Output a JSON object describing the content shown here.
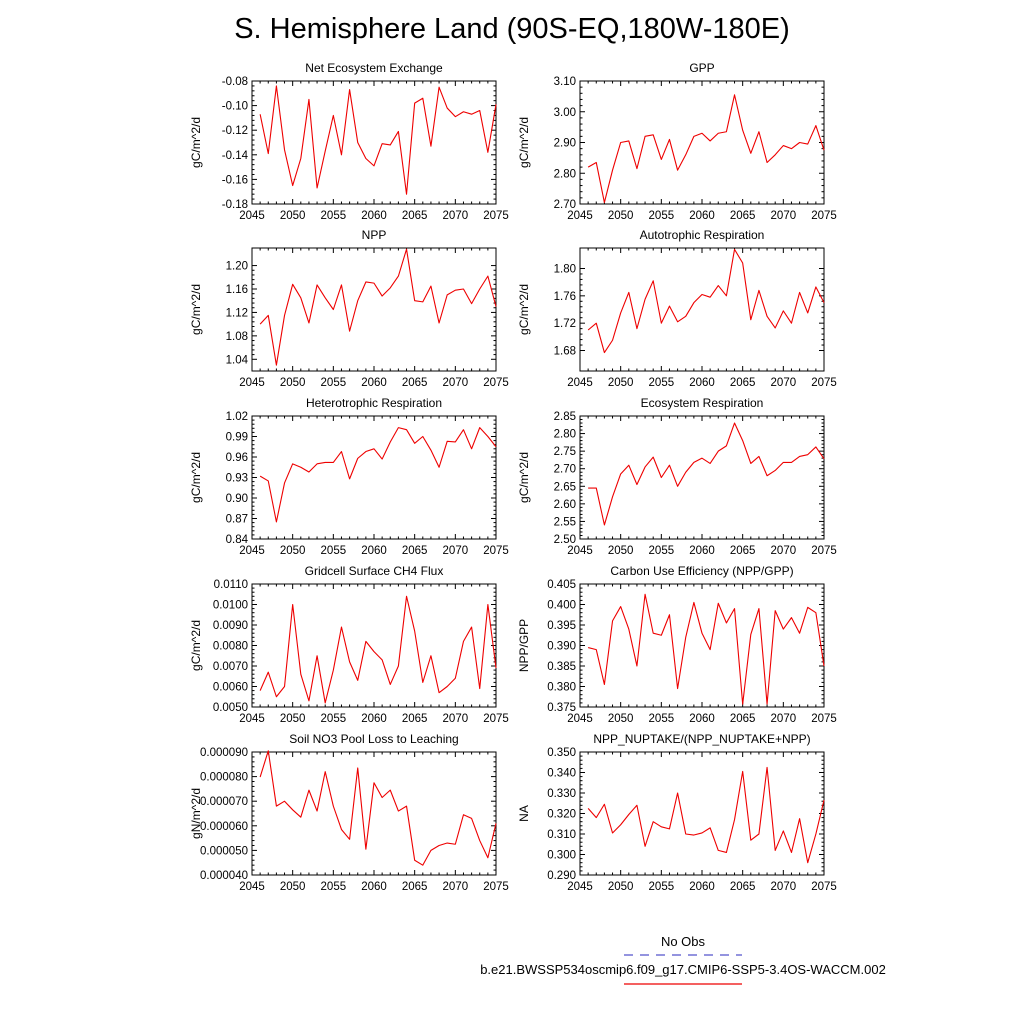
{
  "page_title": "S. Hemisphere Land (90S-EQ,180W-180E)",
  "line_color": "#ee0000",
  "obs_color": "#5555cc",
  "legend": {
    "obs_label": "No Obs",
    "model_label": "b.e21.BWSSP534oscmip6.f09_g17.CMIP6-SSP5-3.4OS-WACCM.002"
  },
  "chart_data": [
    {
      "type": "line",
      "title": "Net Ecosystem Exchange",
      "ylabel": "gC/m^2/d",
      "xlim": [
        2045,
        2075
      ],
      "ylim": [
        -0.18,
        -0.08
      ],
      "xticks": [
        2045,
        2050,
        2055,
        2060,
        2065,
        2070,
        2075
      ],
      "yticks": [
        -0.18,
        -0.16,
        -0.14,
        -0.12,
        -0.1,
        -0.08
      ],
      "ytick_labels": [
        "-0.18",
        "-0.16",
        "-0.14",
        "-0.12",
        "-0.10",
        "-0.08"
      ],
      "x": [
        2046,
        2047,
        2048,
        2049,
        2050,
        2051,
        2052,
        2053,
        2054,
        2055,
        2056,
        2057,
        2058,
        2059,
        2060,
        2061,
        2062,
        2063,
        2064,
        2065,
        2066,
        2067,
        2068,
        2069,
        2070,
        2071,
        2072,
        2073,
        2074,
        2075
      ],
      "values": [
        -0.107,
        -0.139,
        -0.084,
        -0.136,
        -0.165,
        -0.143,
        -0.095,
        -0.167,
        -0.137,
        -0.108,
        -0.14,
        -0.087,
        -0.13,
        -0.143,
        -0.149,
        -0.131,
        -0.132,
        -0.121,
        -0.172,
        -0.098,
        -0.094,
        -0.133,
        -0.085,
        -0.102,
        -0.109,
        -0.105,
        -0.107,
        -0.104,
        -0.138,
        -0.099
      ]
    },
    {
      "type": "line",
      "title": "GPP",
      "ylabel": "gC/m^2/d",
      "xlim": [
        2045,
        2075
      ],
      "ylim": [
        2.7,
        3.1
      ],
      "xticks": [
        2045,
        2050,
        2055,
        2060,
        2065,
        2070,
        2075
      ],
      "yticks": [
        2.7,
        2.8,
        2.9,
        3.0,
        3.1
      ],
      "ytick_labels": [
        "2.70",
        "2.80",
        "2.90",
        "3.00",
        "3.10"
      ],
      "x": [
        2046,
        2047,
        2048,
        2049,
        2050,
        2051,
        2052,
        2053,
        2054,
        2055,
        2056,
        2057,
        2058,
        2059,
        2060,
        2061,
        2062,
        2063,
        2064,
        2065,
        2066,
        2067,
        2068,
        2069,
        2070,
        2071,
        2072,
        2073,
        2074,
        2075
      ],
      "values": [
        2.82,
        2.835,
        2.705,
        2.81,
        2.9,
        2.905,
        2.815,
        2.92,
        2.925,
        2.845,
        2.91,
        2.81,
        2.86,
        2.92,
        2.93,
        2.905,
        2.93,
        2.935,
        3.055,
        2.94,
        2.865,
        2.935,
        2.835,
        2.86,
        2.89,
        2.88,
        2.9,
        2.895,
        2.955,
        2.875
      ]
    },
    {
      "type": "line",
      "title": "NPP",
      "ylabel": "gC/m^2/d",
      "xlim": [
        2045,
        2075
      ],
      "ylim": [
        1.02,
        1.23
      ],
      "xticks": [
        2045,
        2050,
        2055,
        2060,
        2065,
        2070,
        2075
      ],
      "yticks": [
        1.04,
        1.08,
        1.12,
        1.16,
        1.2
      ],
      "ytick_labels": [
        "1.04",
        "1.08",
        "1.12",
        "1.16",
        "1.20"
      ],
      "x": [
        2046,
        2047,
        2048,
        2049,
        2050,
        2051,
        2052,
        2053,
        2054,
        2055,
        2056,
        2057,
        2058,
        2059,
        2060,
        2061,
        2062,
        2063,
        2064,
        2065,
        2066,
        2067,
        2068,
        2069,
        2070,
        2071,
        2072,
        2073,
        2074,
        2075
      ],
      "values": [
        1.1,
        1.115,
        1.03,
        1.115,
        1.168,
        1.145,
        1.102,
        1.167,
        1.145,
        1.125,
        1.167,
        1.088,
        1.14,
        1.172,
        1.17,
        1.148,
        1.162,
        1.182,
        1.228,
        1.14,
        1.138,
        1.165,
        1.102,
        1.15,
        1.158,
        1.16,
        1.135,
        1.16,
        1.182,
        1.13
      ]
    },
    {
      "type": "line",
      "title": "Autotrophic Respiration",
      "ylabel": "gC/m^2/d",
      "xlim": [
        2045,
        2075
      ],
      "ylim": [
        1.65,
        1.83
      ],
      "xticks": [
        2045,
        2050,
        2055,
        2060,
        2065,
        2070,
        2075
      ],
      "yticks": [
        1.68,
        1.72,
        1.76,
        1.8
      ],
      "ytick_labels": [
        "1.68",
        "1.72",
        "1.76",
        "1.80"
      ],
      "x": [
        2046,
        2047,
        2048,
        2049,
        2050,
        2051,
        2052,
        2053,
        2054,
        2055,
        2056,
        2057,
        2058,
        2059,
        2060,
        2061,
        2062,
        2063,
        2064,
        2065,
        2066,
        2067,
        2068,
        2069,
        2070,
        2071,
        2072,
        2073,
        2074,
        2075
      ],
      "values": [
        1.71,
        1.72,
        1.677,
        1.695,
        1.735,
        1.765,
        1.712,
        1.755,
        1.782,
        1.72,
        1.745,
        1.722,
        1.73,
        1.75,
        1.762,
        1.758,
        1.775,
        1.76,
        1.828,
        1.808,
        1.725,
        1.768,
        1.73,
        1.713,
        1.738,
        1.72,
        1.765,
        1.735,
        1.773,
        1.75
      ]
    },
    {
      "type": "line",
      "title": "Heterotrophic Respiration",
      "ylabel": "gC/m^2/d",
      "xlim": [
        2045,
        2075
      ],
      "ylim": [
        0.84,
        1.02
      ],
      "xticks": [
        2045,
        2050,
        2055,
        2060,
        2065,
        2070,
        2075
      ],
      "yticks": [
        0.84,
        0.87,
        0.9,
        0.93,
        0.96,
        0.99,
        1.02
      ],
      "ytick_labels": [
        "0.84",
        "0.87",
        "0.90",
        "0.93",
        "0.96",
        "0.99",
        "1.02"
      ],
      "x": [
        2046,
        2047,
        2048,
        2049,
        2050,
        2051,
        2052,
        2053,
        2054,
        2055,
        2056,
        2057,
        2058,
        2059,
        2060,
        2061,
        2062,
        2063,
        2064,
        2065,
        2066,
        2067,
        2068,
        2069,
        2070,
        2071,
        2072,
        2073,
        2074,
        2075
      ],
      "values": [
        0.932,
        0.925,
        0.865,
        0.922,
        0.95,
        0.945,
        0.938,
        0.95,
        0.952,
        0.952,
        0.968,
        0.928,
        0.958,
        0.968,
        0.972,
        0.957,
        0.982,
        1.003,
        1.0,
        0.98,
        0.99,
        0.97,
        0.945,
        0.983,
        0.982,
        1.0,
        0.972,
        1.003,
        0.99,
        0.975
      ]
    },
    {
      "type": "line",
      "title": "Ecosystem Respiration",
      "ylabel": "gC/m^2/d",
      "xlim": [
        2045,
        2075
      ],
      "ylim": [
        2.5,
        2.85
      ],
      "xticks": [
        2045,
        2050,
        2055,
        2060,
        2065,
        2070,
        2075
      ],
      "yticks": [
        2.5,
        2.55,
        2.6,
        2.65,
        2.7,
        2.75,
        2.8,
        2.85
      ],
      "ytick_labels": [
        "2.50",
        "2.55",
        "2.60",
        "2.65",
        "2.70",
        "2.75",
        "2.80",
        "2.85"
      ],
      "x": [
        2046,
        2047,
        2048,
        2049,
        2050,
        2051,
        2052,
        2053,
        2054,
        2055,
        2056,
        2057,
        2058,
        2059,
        2060,
        2061,
        2062,
        2063,
        2064,
        2065,
        2066,
        2067,
        2068,
        2069,
        2070,
        2071,
        2072,
        2073,
        2074,
        2075
      ],
      "values": [
        2.645,
        2.645,
        2.54,
        2.62,
        2.685,
        2.71,
        2.655,
        2.705,
        2.733,
        2.675,
        2.71,
        2.65,
        2.69,
        2.718,
        2.73,
        2.715,
        2.75,
        2.765,
        2.83,
        2.78,
        2.715,
        2.735,
        2.68,
        2.695,
        2.718,
        2.718,
        2.735,
        2.74,
        2.762,
        2.728
      ]
    },
    {
      "type": "line",
      "title": "Gridcell Surface CH4 Flux",
      "ylabel": "gC/m^2/d",
      "xlim": [
        2045,
        2075
      ],
      "ylim": [
        0.005,
        0.011
      ],
      "xticks": [
        2045,
        2050,
        2055,
        2060,
        2065,
        2070,
        2075
      ],
      "yticks": [
        0.005,
        0.006,
        0.007,
        0.008,
        0.009,
        0.01,
        0.011
      ],
      "ytick_labels": [
        "0.0050",
        "0.0060",
        "0.0070",
        "0.0080",
        "0.0090",
        "0.0100",
        "0.0110"
      ],
      "x": [
        2046,
        2047,
        2048,
        2049,
        2050,
        2051,
        2052,
        2053,
        2054,
        2055,
        2056,
        2057,
        2058,
        2059,
        2060,
        2061,
        2062,
        2063,
        2064,
        2065,
        2066,
        2067,
        2068,
        2069,
        2070,
        2071,
        2072,
        2073,
        2074,
        2075
      ],
      "values": [
        0.0058,
        0.0067,
        0.0055,
        0.006,
        0.01,
        0.0066,
        0.0053,
        0.0075,
        0.0052,
        0.0068,
        0.0089,
        0.0072,
        0.0063,
        0.0082,
        0.0077,
        0.0073,
        0.0061,
        0.007,
        0.0104,
        0.0087,
        0.0062,
        0.0075,
        0.0057,
        0.006,
        0.0064,
        0.0082,
        0.0089,
        0.0059,
        0.01,
        0.0069
      ]
    },
    {
      "type": "line",
      "title": "Carbon Use Efficiency (NPP/GPP)",
      "ylabel": "NPP/GPP",
      "xlim": [
        2045,
        2075
      ],
      "ylim": [
        0.375,
        0.405
      ],
      "xticks": [
        2045,
        2050,
        2055,
        2060,
        2065,
        2070,
        2075
      ],
      "yticks": [
        0.375,
        0.38,
        0.385,
        0.39,
        0.395,
        0.4,
        0.405
      ],
      "ytick_labels": [
        "0.375",
        "0.380",
        "0.385",
        "0.390",
        "0.395",
        "0.400",
        "0.405"
      ],
      "x": [
        2046,
        2047,
        2048,
        2049,
        2050,
        2051,
        2052,
        2053,
        2054,
        2055,
        2056,
        2057,
        2058,
        2059,
        2060,
        2061,
        2062,
        2063,
        2064,
        2065,
        2066,
        2067,
        2068,
        2069,
        2070,
        2071,
        2072,
        2073,
        2074,
        2075
      ],
      "values": [
        0.3895,
        0.389,
        0.3805,
        0.396,
        0.3995,
        0.394,
        0.385,
        0.4025,
        0.393,
        0.3925,
        0.3975,
        0.3795,
        0.392,
        0.4005,
        0.393,
        0.389,
        0.4003,
        0.3955,
        0.399,
        0.3757,
        0.3927,
        0.399,
        0.3757,
        0.3985,
        0.394,
        0.3968,
        0.393,
        0.3993,
        0.398,
        0.385
      ]
    },
    {
      "type": "line",
      "title": "Soil NO3 Pool Loss to Leaching",
      "ylabel": "gN/m^2/d",
      "xlim": [
        2045,
        2075
      ],
      "ylim": [
        4e-05,
        9e-05
      ],
      "xticks": [
        2045,
        2050,
        2055,
        2060,
        2065,
        2070,
        2075
      ],
      "yticks": [
        4e-05,
        5e-05,
        6e-05,
        7e-05,
        8e-05,
        9e-05
      ],
      "ytick_labels": [
        "0.000040",
        "0.000050",
        "0.000060",
        "0.000070",
        "0.000080",
        "0.000090"
      ],
      "x": [
        2046,
        2047,
        2048,
        2049,
        2050,
        2051,
        2052,
        2053,
        2054,
        2055,
        2056,
        2057,
        2058,
        2059,
        2060,
        2061,
        2062,
        2063,
        2064,
        2065,
        2066,
        2067,
        2068,
        2069,
        2070,
        2071,
        2072,
        2073,
        2074,
        2075
      ],
      "values": [
        7.98e-05,
        9.05e-05,
        6.8e-05,
        7e-05,
        6.65e-05,
        6.35e-05,
        7.45e-05,
        6.6e-05,
        8.2e-05,
        6.8e-05,
        5.85e-05,
        5.45e-05,
        8.35e-05,
        5.05e-05,
        7.75e-05,
        7.15e-05,
        7.45e-05,
        6.6e-05,
        6.8e-05,
        4.6e-05,
        4.4e-05,
        5e-05,
        5.2e-05,
        5.3e-05,
        5.25e-05,
        6.45e-05,
        6.3e-05,
        5.4e-05,
        4.7e-05,
        6.1e-05
      ]
    },
    {
      "type": "line",
      "title": "NPP_NUPTAKE/(NPP_NUPTAKE+NPP)",
      "ylabel": "NA",
      "xlim": [
        2045,
        2075
      ],
      "ylim": [
        0.29,
        0.35
      ],
      "xticks": [
        2045,
        2050,
        2055,
        2060,
        2065,
        2070,
        2075
      ],
      "yticks": [
        0.29,
        0.3,
        0.31,
        0.32,
        0.33,
        0.34,
        0.35
      ],
      "ytick_labels": [
        "0.290",
        "0.300",
        "0.310",
        "0.320",
        "0.330",
        "0.340",
        "0.350"
      ],
      "x": [
        2046,
        2047,
        2048,
        2049,
        2050,
        2051,
        2052,
        2053,
        2054,
        2055,
        2056,
        2057,
        2058,
        2059,
        2060,
        2061,
        2062,
        2063,
        2064,
        2065,
        2066,
        2067,
        2068,
        2069,
        2070,
        2071,
        2072,
        2073,
        2074,
        2075
      ],
      "values": [
        0.3225,
        0.318,
        0.3245,
        0.3105,
        0.3145,
        0.3195,
        0.324,
        0.304,
        0.316,
        0.3135,
        0.3125,
        0.33,
        0.31,
        0.3095,
        0.3105,
        0.313,
        0.302,
        0.301,
        0.317,
        0.3405,
        0.307,
        0.31,
        0.3425,
        0.302,
        0.3115,
        0.301,
        0.3175,
        0.296,
        0.31,
        0.3265
      ]
    }
  ]
}
